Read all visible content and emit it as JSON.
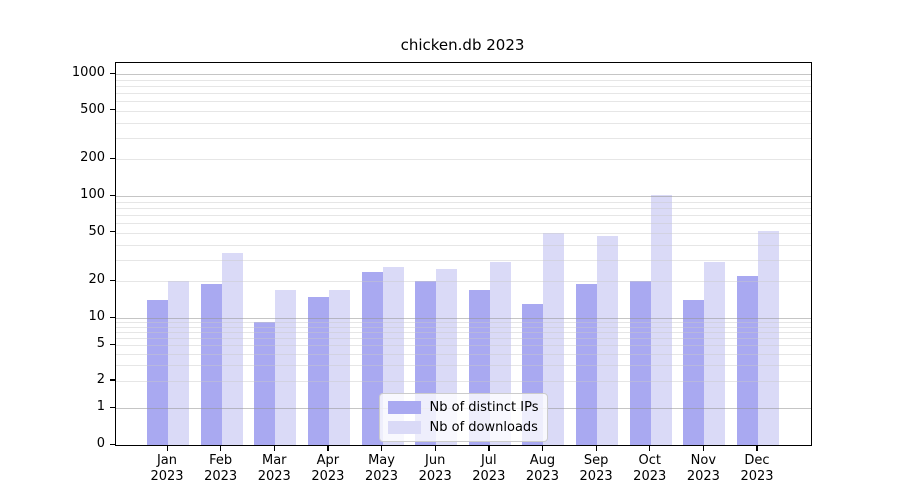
{
  "chart_data": {
    "type": "bar",
    "title": "chicken.db 2023",
    "categories": [
      "Jan",
      "Feb",
      "Mar",
      "Apr",
      "May",
      "Jun",
      "Jul",
      "Aug",
      "Sep",
      "Oct",
      "Nov",
      "Dec"
    ],
    "year_label": "2023",
    "series": [
      {
        "name": "Nb of distinct IPs",
        "values": [
          14,
          19,
          9,
          15,
          24,
          20,
          17,
          13,
          19,
          20,
          14,
          22
        ]
      },
      {
        "name": "Nb of downloads",
        "values": [
          20,
          34,
          17,
          17,
          26,
          25,
          29,
          50,
          47,
          101,
          29,
          52
        ]
      }
    ],
    "yscale": "symlog",
    "yticks": [
      0,
      1,
      2,
      5,
      10,
      20,
      50,
      100,
      200,
      500,
      1000
    ],
    "ylim": [
      0,
      1500
    ],
    "xlabel": "",
    "ylabel": "",
    "grid": true,
    "legend_position": "lower center"
  },
  "legend": {
    "items": [
      {
        "label": "Nb of distinct IPs",
        "color_key": "bar_ips"
      },
      {
        "label": "Nb of downloads",
        "color_key": "bar_downloads"
      }
    ]
  },
  "colors": {
    "bar_ips": "#a9a9f1",
    "bar_downloads": "#dadaf7",
    "grid_major": "rgba(150,150,150,0.55)",
    "grid_minor": "rgba(200,200,200,0.45)",
    "axis": "#000000",
    "legend_border": "#cccccc",
    "legend_bg": "rgba(255,255,255,0.8)"
  }
}
